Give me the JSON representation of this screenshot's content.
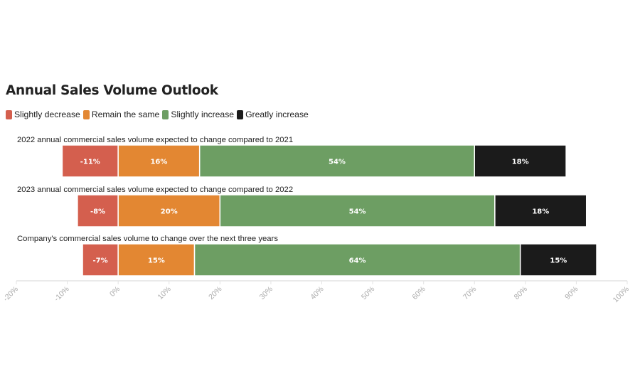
{
  "chart_data": {
    "type": "bar",
    "orientation": "horizontal",
    "stacked": true,
    "diverging": true,
    "title": "Annual Sales Volume Outlook",
    "xlabel": "",
    "ylabel": "",
    "xlim": [
      -20,
      100
    ],
    "x_ticks": [
      "-20%",
      "-10%",
      "0%",
      "10%",
      "20%",
      "30%",
      "40%",
      "50%",
      "60%",
      "70%",
      "80%",
      "90%",
      "100%"
    ],
    "x_tick_values": [
      -20,
      -10,
      0,
      10,
      20,
      30,
      40,
      50,
      60,
      70,
      80,
      90,
      100
    ],
    "legend_position": "top-left",
    "grid": false,
    "categories": [
      "2022 annual commercial sales volume expected to change compared to 2021",
      "2023 annual commercial sales volume expected to change compared to 2022",
      "Company's commercial sales volume to change over the next three years"
    ],
    "series": [
      {
        "name": "Slightly decrease",
        "color": "#d45f4e",
        "values": [
          -11,
          -8,
          -7
        ],
        "labels": [
          "-11%",
          "-8%",
          "-7%"
        ]
      },
      {
        "name": "Remain the same",
        "color": "#e38732",
        "values": [
          16,
          20,
          15
        ],
        "labels": [
          "16%",
          "20%",
          "15%"
        ]
      },
      {
        "name": "Slightly increase",
        "color": "#6d9e63",
        "values": [
          54,
          54,
          64
        ],
        "labels": [
          "54%",
          "54%",
          "64%"
        ]
      },
      {
        "name": "Greatly increase",
        "color": "#1b1b1b",
        "values": [
          18,
          18,
          15
        ],
        "labels": [
          "18%",
          "18%",
          "15%"
        ]
      }
    ]
  },
  "colors": {
    "axis": "#e3e3e3",
    "tick_text": "#aaaaaa",
    "bar_border": "#ffffff"
  }
}
